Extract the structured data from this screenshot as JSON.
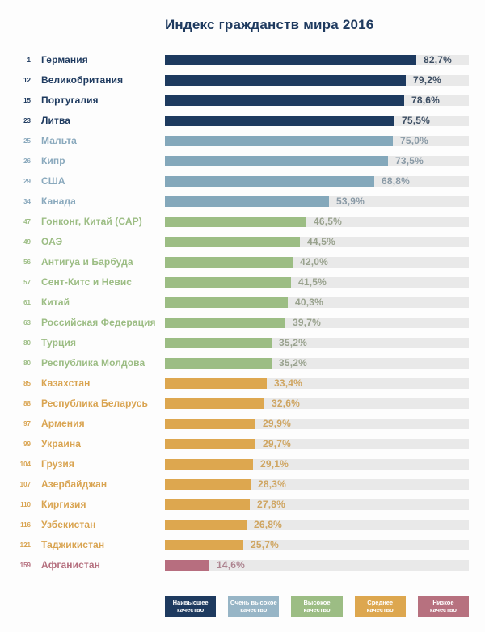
{
  "title": "Индекс гражданств мира 2016",
  "palette": {
    "highest": {
      "bar": "#1d3a5f",
      "text": "#1e3a5f",
      "value": "#3d4e63",
      "legend": "#1e3a5f"
    },
    "very_high": {
      "bar": "#84a8bb",
      "text": "#8aa9bd",
      "value": "#8a9aa6",
      "legend": "#97b5c6"
    },
    "high": {
      "bar": "#9cbd84",
      "text": "#9cbd84",
      "value": "#99a28e",
      "legend": "#9cbd84"
    },
    "medium": {
      "bar": "#dda74f",
      "text": "#d9a451",
      "value": "#cfa561",
      "legend": "#dda74f"
    },
    "low": {
      "bar": "#b76e7f",
      "text": "#b5707f",
      "value": "#ad8490",
      "legend": "#b7717f"
    }
  },
  "track_color": "#e9e9e9",
  "chart_data": {
    "type": "bar",
    "orientation": "horizontal",
    "title": "Индекс гражданств мира 2016",
    "xlim": [
      0,
      100
    ],
    "value_suffix": "%",
    "legend_position": "bottom",
    "rows": [
      {
        "rank": "1",
        "country": "Германия",
        "value": 82.7,
        "label": "82,7%",
        "category": "highest"
      },
      {
        "rank": "12",
        "country": "Великобритания",
        "value": 79.2,
        "label": "79,2%",
        "category": "highest"
      },
      {
        "rank": "15",
        "country": "Португалия",
        "value": 78.6,
        "label": "78,6%",
        "category": "highest"
      },
      {
        "rank": "23",
        "country": "Литва",
        "value": 75.5,
        "label": "75,5%",
        "category": "highest"
      },
      {
        "rank": "25",
        "country": "Мальта",
        "value": 75.0,
        "label": "75,0%",
        "category": "very_high"
      },
      {
        "rank": "26",
        "country": "Кипр",
        "value": 73.5,
        "label": "73,5%",
        "category": "very_high"
      },
      {
        "rank": "29",
        "country": "США",
        "value": 68.8,
        "label": "68,8%",
        "category": "very_high"
      },
      {
        "rank": "34",
        "country": "Канада",
        "value": 53.9,
        "label": "53,9%",
        "category": "very_high"
      },
      {
        "rank": "47",
        "country": "Гонконг, Китай (САР)",
        "value": 46.5,
        "label": "46,5%",
        "category": "high"
      },
      {
        "rank": "49",
        "country": "ОАЭ",
        "value": 44.5,
        "label": "44,5%",
        "category": "high"
      },
      {
        "rank": "56",
        "country": "Антигуа и Барбуда",
        "value": 42.0,
        "label": "42,0%",
        "category": "high"
      },
      {
        "rank": "57",
        "country": "Сент-Китс и Невис",
        "value": 41.5,
        "label": "41,5%",
        "category": "high"
      },
      {
        "rank": "61",
        "country": "Китай",
        "value": 40.3,
        "label": "40,3%",
        "category": "high"
      },
      {
        "rank": "63",
        "country": "Российская Федерация",
        "value": 39.7,
        "label": "39,7%",
        "category": "high"
      },
      {
        "rank": "80",
        "country": "Турция",
        "value": 35.2,
        "label": "35,2%",
        "category": "high"
      },
      {
        "rank": "80",
        "country": "Республика Молдова",
        "value": 35.2,
        "label": "35,2%",
        "category": "high"
      },
      {
        "rank": "85",
        "country": "Казахстан",
        "value": 33.4,
        "label": "33,4%",
        "category": "medium"
      },
      {
        "rank": "88",
        "country": "Республика Беларусь",
        "value": 32.6,
        "label": "32,6%",
        "category": "medium"
      },
      {
        "rank": "97",
        "country": "Армения",
        "value": 29.9,
        "label": "29,9%",
        "category": "medium"
      },
      {
        "rank": "99",
        "country": "Украина",
        "value": 29.7,
        "label": "29,7%",
        "category": "medium"
      },
      {
        "rank": "104",
        "country": "Грузия",
        "value": 29.1,
        "label": "29,1%",
        "category": "medium"
      },
      {
        "rank": "107",
        "country": "Азербайджан",
        "value": 28.3,
        "label": "28,3%",
        "category": "medium"
      },
      {
        "rank": "110",
        "country": "Киргизия",
        "value": 27.8,
        "label": "27,8%",
        "category": "medium"
      },
      {
        "rank": "116",
        "country": "Узбекистан",
        "value": 26.8,
        "label": "26,8%",
        "category": "medium"
      },
      {
        "rank": "121",
        "country": "Таджикистан",
        "value": 25.7,
        "label": "25,7%",
        "category": "medium"
      },
      {
        "rank": "159",
        "country": "Афганистан",
        "value": 14.6,
        "label": "14,6%",
        "category": "low"
      }
    ],
    "legend": [
      {
        "key": "highest",
        "line1": "Наивысшее",
        "line2": "качество"
      },
      {
        "key": "very_high",
        "line1": "Очень высокое",
        "line2": "качество"
      },
      {
        "key": "high",
        "line1": "Высокое",
        "line2": "качество"
      },
      {
        "key": "medium",
        "line1": "Среднее",
        "line2": "качество"
      },
      {
        "key": "low",
        "line1": "Низкое",
        "line2": "качество"
      }
    ]
  }
}
